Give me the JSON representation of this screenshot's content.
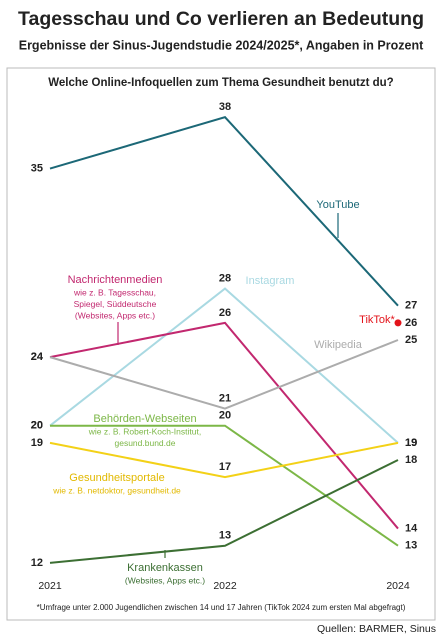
{
  "chart_data": {
    "type": "line",
    "title": "Tagesschau und Co verlieren an Bedeutung",
    "subtitle": "Ergebnisse der Sinus-Jugendstudie 2024/2025*, Angaben in Prozent",
    "question": "Welche Online-Infoquellen zum Thema Gesundheit benutzt du?",
    "footnote": "*Umfrage unter 2.000 Jugendlichen zwischen 14 und 17 Jahren (TikTok 2024 zum ersten Mal abgefragt)",
    "source": "Quellen: BARMER, Sinus",
    "categories": [
      "2021",
      "2022",
      "2024"
    ],
    "ylim": [
      11,
      39
    ],
    "series": [
      {
        "name": "YouTube",
        "color": "#1c6877",
        "values": [
          35,
          38,
          27
        ]
      },
      {
        "name": "Instagram",
        "color": "#a9d9e2",
        "values": [
          20,
          28,
          19
        ]
      },
      {
        "name": "Nachrichtenmedien",
        "description": [
          "wie z. B. Tagesschau,",
          "Spiegel, Süddeutsche",
          "(Websites, Apps etc.)"
        ],
        "color": "#c2286f",
        "values": [
          24,
          26,
          14
        ]
      },
      {
        "name": "Wikipedia",
        "color": "#acacac",
        "values": [
          24,
          21,
          25
        ]
      },
      {
        "name": "Behörden-Webseiten",
        "description": [
          "wie z. B. Robert-Koch-Institut,",
          "gesund.bund.de"
        ],
        "color": "#7cb747",
        "values": [
          20,
          20,
          13
        ]
      },
      {
        "name": "Gesundheitsportale",
        "description": [
          "wie z. B. netdoktor, gesundheit.de"
        ],
        "color": "#f3d117",
        "values": [
          19,
          17,
          19
        ]
      },
      {
        "name": "Krankenkassen",
        "description": [
          "(Websites, Apps etc.)"
        ],
        "color": "#3c6f33",
        "values": [
          12,
          13,
          18
        ]
      },
      {
        "name": "TikTok*",
        "color": "#e3141b",
        "values": [
          null,
          null,
          26
        ]
      }
    ]
  }
}
